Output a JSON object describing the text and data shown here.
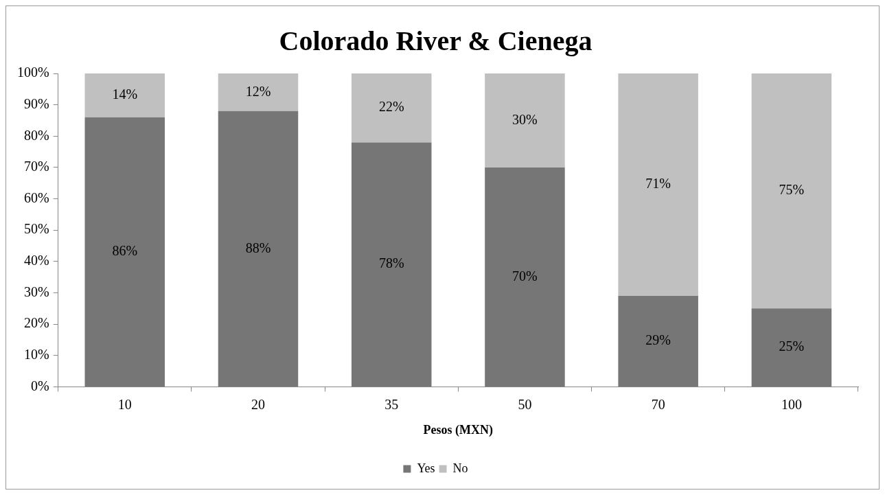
{
  "chart_data": {
    "type": "bar",
    "title": "Colorado River & Cienega",
    "xlabel": "Pesos (MXN)",
    "categories": [
      "10",
      "20",
      "35",
      "50",
      "70",
      "100"
    ],
    "stacked": true,
    "grid": false,
    "legend": "bottom",
    "ylim": [
      0,
      100
    ],
    "yticks": [
      {
        "value": 0,
        "label": "0%"
      },
      {
        "value": 10,
        "label": "10%"
      },
      {
        "value": 20,
        "label": "20%"
      },
      {
        "value": 30,
        "label": "30%"
      },
      {
        "value": 40,
        "label": "40%"
      },
      {
        "value": 50,
        "label": "50%"
      },
      {
        "value": 60,
        "label": "60%"
      },
      {
        "value": 70,
        "label": "70%"
      },
      {
        "value": 80,
        "label": "80%"
      },
      {
        "value": 90,
        "label": "90%"
      },
      {
        "value": 100,
        "label": "100%"
      }
    ],
    "series": [
      {
        "name": "Yes",
        "color": "#767676",
        "values": [
          86,
          88,
          78,
          70,
          29,
          25
        ],
        "value_labels": [
          "86%",
          "88%",
          "78%",
          "70%",
          "29%",
          "25%"
        ]
      },
      {
        "name": "No",
        "color": "#c0c0c0",
        "values": [
          14,
          12,
          22,
          30,
          71,
          75
        ],
        "value_labels": [
          "14%",
          "12%",
          "22%",
          "30%",
          "71%",
          "75%"
        ]
      }
    ]
  }
}
